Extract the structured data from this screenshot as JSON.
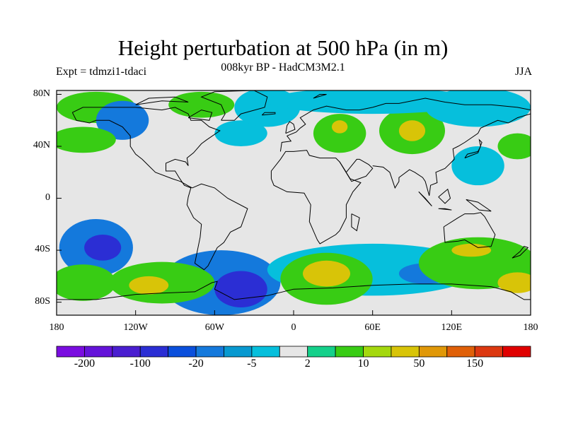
{
  "title": "Height perturbation at 500 hPa (in m)",
  "subtitle": "008kyr BP - HadCM3M2.1",
  "experiment": "Expt = tdmzi1-tdaci",
  "season": "JJA",
  "map": {
    "projection": "equirectangular",
    "lon_range": [
      -180,
      180
    ],
    "lat_range": [
      -90,
      90
    ],
    "land_fill": "#e6e6e6",
    "coastline_color": "#000000"
  },
  "lat_ticks": [
    {
      "lat": 80,
      "label": "80N"
    },
    {
      "lat": 40,
      "label": "40N"
    },
    {
      "lat": 0,
      "label": "0"
    },
    {
      "lat": -40,
      "label": "40S"
    },
    {
      "lat": -80,
      "label": "80S"
    }
  ],
  "lon_ticks": [
    {
      "lon": -180,
      "label": "180"
    },
    {
      "lon": -120,
      "label": "120W"
    },
    {
      "lon": -60,
      "label": "60W"
    },
    {
      "lon": 0,
      "label": "0"
    },
    {
      "lon": 60,
      "label": "60E"
    },
    {
      "lon": 120,
      "label": "120E"
    },
    {
      "lon": 180,
      "label": "180"
    }
  ],
  "colorbar": {
    "colors": [
      "#7a0de0",
      "#6413d9",
      "#4a1ed0",
      "#2b2ed4",
      "#0a4fdc",
      "#1479dc",
      "#0899d0",
      "#06bfdc",
      "#e6e6e6",
      "#14d08a",
      "#38cc14",
      "#a4d80e",
      "#d8c408",
      "#e09808",
      "#e06008",
      "#dc3810",
      "#e00000"
    ],
    "labels": [
      {
        "index": 1,
        "text": "-200"
      },
      {
        "index": 3,
        "text": "-100"
      },
      {
        "index": 5,
        "text": "-20"
      },
      {
        "index": 7,
        "text": "-5"
      },
      {
        "index": 9,
        "text": "2"
      },
      {
        "index": 11,
        "text": "10"
      },
      {
        "index": 13,
        "text": "50"
      },
      {
        "index": 15,
        "text": "150"
      }
    ]
  },
  "anomaly_regions": [
    {
      "lon": -150,
      "lat": -38,
      "level": -20,
      "rx": 28,
      "ry": 22
    },
    {
      "lon": -145,
      "lat": -38,
      "level": -100,
      "rx": 14,
      "ry": 10
    },
    {
      "lon": -55,
      "lat": -65,
      "level": -20,
      "rx": 45,
      "ry": 25
    },
    {
      "lon": -40,
      "lat": -70,
      "level": -100,
      "rx": 20,
      "ry": 14
    },
    {
      "lon": 60,
      "lat": -55,
      "level": -5,
      "rx": 80,
      "ry": 20
    },
    {
      "lon": 100,
      "lat": -58,
      "level": -20,
      "rx": 20,
      "ry": 8
    },
    {
      "lon": 25,
      "lat": -62,
      "level": 10,
      "rx": 35,
      "ry": 20
    },
    {
      "lon": 25,
      "lat": -58,
      "level": 50,
      "rx": 18,
      "ry": 10
    },
    {
      "lon": -100,
      "lat": -65,
      "level": 10,
      "rx": 40,
      "ry": 16
    },
    {
      "lon": -110,
      "lat": -67,
      "level": 50,
      "rx": 15,
      "ry": 7
    },
    {
      "lon": -160,
      "lat": -65,
      "level": 10,
      "rx": 25,
      "ry": 14
    },
    {
      "lon": 140,
      "lat": -50,
      "level": 10,
      "rx": 45,
      "ry": 20
    },
    {
      "lon": 135,
      "lat": -40,
      "level": 50,
      "rx": 15,
      "ry": 5
    },
    {
      "lon": 170,
      "lat": -65,
      "level": 50,
      "rx": 15,
      "ry": 8
    },
    {
      "lon": 90,
      "lat": 52,
      "level": 10,
      "rx": 25,
      "ry": 18
    },
    {
      "lon": 90,
      "lat": 52,
      "level": 50,
      "rx": 10,
      "ry": 8
    },
    {
      "lon": 35,
      "lat": 50,
      "level": 10,
      "rx": 20,
      "ry": 15
    },
    {
      "lon": 35,
      "lat": 55,
      "level": 50,
      "rx": 6,
      "ry": 5
    },
    {
      "lon": -70,
      "lat": 72,
      "level": 10,
      "rx": 25,
      "ry": 10
    },
    {
      "lon": -150,
      "lat": 70,
      "level": 10,
      "rx": 30,
      "ry": 12
    },
    {
      "lon": -130,
      "lat": 60,
      "level": -20,
      "rx": 20,
      "ry": 15
    },
    {
      "lon": -40,
      "lat": 50,
      "level": -5,
      "rx": 20,
      "ry": 10
    },
    {
      "lon": -20,
      "lat": 70,
      "level": -5,
      "rx": 25,
      "ry": 15
    },
    {
      "lon": 140,
      "lat": 70,
      "level": -5,
      "rx": 40,
      "ry": 15
    },
    {
      "lon": -160,
      "lat": 45,
      "level": 10,
      "rx": 25,
      "ry": 10
    },
    {
      "lon": 60,
      "lat": 75,
      "level": -5,
      "rx": 80,
      "ry": 10
    },
    {
      "lon": 170,
      "lat": 40,
      "level": 10,
      "rx": 15,
      "ry": 10
    },
    {
      "lon": 140,
      "lat": 25,
      "level": -5,
      "rx": 20,
      "ry": 15
    }
  ]
}
